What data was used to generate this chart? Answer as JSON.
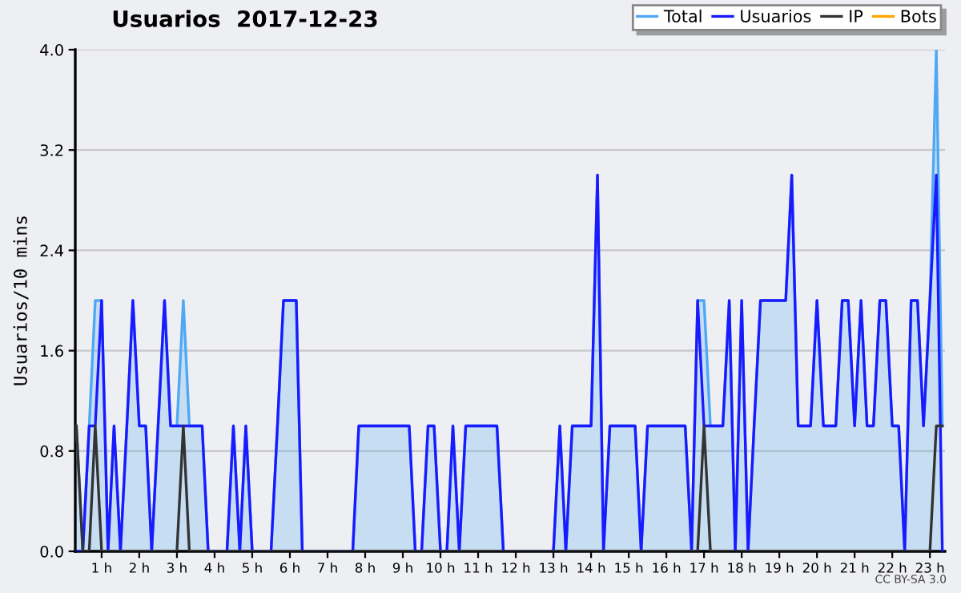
{
  "chart_data": {
    "type": "line",
    "title": "Usuarios  2017-12-23",
    "ylabel": "Usuarios/10 mins",
    "annotations": [
      "CC BY-SA 3.0"
    ],
    "x": [
      0.33,
      0.5,
      0.67,
      0.83,
      1,
      1.17,
      1.33,
      1.5,
      1.67,
      1.83,
      2,
      2.17,
      2.33,
      2.5,
      2.67,
      2.83,
      3,
      3.17,
      3.33,
      3.5,
      3.67,
      3.83,
      4,
      4.17,
      4.33,
      4.5,
      4.67,
      4.83,
      5,
      5.17,
      5.33,
      5.5,
      5.67,
      5.83,
      6,
      6.17,
      6.33,
      6.5,
      6.67,
      6.83,
      7,
      7.17,
      7.33,
      7.5,
      7.67,
      7.83,
      8,
      8.17,
      8.33,
      8.5,
      8.67,
      8.83,
      9,
      9.17,
      9.33,
      9.5,
      9.67,
      9.83,
      10,
      10.17,
      10.33,
      10.5,
      10.67,
      10.83,
      11,
      11.17,
      11.33,
      11.5,
      11.67,
      11.83,
      12,
      12.17,
      12.33,
      12.5,
      12.67,
      12.83,
      13,
      13.17,
      13.33,
      13.5,
      13.67,
      13.83,
      14,
      14.17,
      14.33,
      14.5,
      14.67,
      14.83,
      15,
      15.17,
      15.33,
      15.5,
      15.67,
      15.83,
      16,
      16.17,
      16.33,
      16.5,
      16.67,
      16.83,
      17,
      17.17,
      17.33,
      17.5,
      17.67,
      17.83,
      18,
      18.17,
      18.33,
      18.5,
      18.67,
      18.83,
      19,
      19.17,
      19.33,
      19.5,
      19.67,
      19.83,
      20,
      20.17,
      20.33,
      20.5,
      20.67,
      20.83,
      21,
      21.17,
      21.33,
      21.5,
      21.67,
      21.83,
      22,
      22.17,
      22.33,
      22.5,
      22.67,
      22.83,
      23,
      23.17,
      23.33
    ],
    "series": [
      {
        "name": "Total",
        "type": "area",
        "color": "#4ea8f5",
        "values": [
          1,
          0,
          1,
          2,
          2,
          0,
          1,
          0,
          1,
          2,
          1,
          1,
          0,
          1,
          2,
          1,
          1,
          2,
          1,
          1,
          1,
          0,
          0,
          0,
          0,
          1,
          0,
          1,
          0,
          0,
          0,
          0,
          1,
          2,
          2,
          2,
          0,
          0,
          0,
          0,
          0,
          0,
          0,
          0,
          0,
          1,
          1,
          1,
          1,
          1,
          1,
          1,
          1,
          1,
          0,
          0,
          1,
          1,
          0,
          0,
          1,
          0,
          1,
          1,
          1,
          1,
          1,
          1,
          0,
          0,
          0,
          0,
          0,
          0,
          0,
          0,
          0,
          1,
          0,
          1,
          1,
          1,
          1,
          3,
          0,
          1,
          1,
          1,
          1,
          1,
          0,
          1,
          1,
          1,
          1,
          1,
          1,
          1,
          0,
          2,
          2,
          1,
          1,
          1,
          2,
          0,
          2,
          0,
          1,
          2,
          2,
          2,
          2,
          2,
          3,
          1,
          1,
          1,
          2,
          1,
          1,
          1,
          2,
          2,
          1,
          2,
          1,
          1,
          2,
          2,
          1,
          1,
          0,
          2,
          2,
          1,
          2,
          4,
          1
        ]
      },
      {
        "name": "Usuarios",
        "color": "#1a1aff",
        "values": [
          0,
          0,
          1,
          1,
          2,
          0,
          1,
          0,
          1,
          2,
          1,
          1,
          0,
          1,
          2,
          1,
          1,
          1,
          1,
          1,
          1,
          0,
          0,
          0,
          0,
          1,
          0,
          1,
          0,
          0,
          0,
          0,
          1,
          2,
          2,
          2,
          0,
          0,
          0,
          0,
          0,
          0,
          0,
          0,
          0,
          1,
          1,
          1,
          1,
          1,
          1,
          1,
          1,
          1,
          0,
          0,
          1,
          1,
          0,
          0,
          1,
          0,
          1,
          1,
          1,
          1,
          1,
          1,
          0,
          0,
          0,
          0,
          0,
          0,
          0,
          0,
          0,
          1,
          0,
          1,
          1,
          1,
          1,
          3,
          0,
          1,
          1,
          1,
          1,
          1,
          0,
          1,
          1,
          1,
          1,
          1,
          1,
          1,
          0,
          2,
          1,
          1,
          1,
          1,
          2,
          0,
          2,
          0,
          1,
          2,
          2,
          2,
          2,
          2,
          3,
          1,
          1,
          1,
          2,
          1,
          1,
          1,
          2,
          2,
          1,
          2,
          1,
          1,
          2,
          2,
          1,
          1,
          0,
          2,
          2,
          1,
          2,
          3,
          0
        ]
      },
      {
        "name": "IP",
        "color": "#333333",
        "values": [
          1,
          0,
          0,
          1,
          0,
          0,
          0,
          0,
          0,
          0,
          0,
          0,
          0,
          0,
          0,
          0,
          0,
          1,
          0,
          0,
          0,
          0,
          0,
          0,
          0,
          0,
          0,
          0,
          0,
          0,
          0,
          0,
          0,
          0,
          0,
          0,
          0,
          0,
          0,
          0,
          0,
          0,
          0,
          0,
          0,
          0,
          0,
          0,
          0,
          0,
          0,
          0,
          0,
          0,
          0,
          0,
          0,
          0,
          0,
          0,
          0,
          0,
          0,
          0,
          0,
          0,
          0,
          0,
          0,
          0,
          0,
          0,
          0,
          0,
          0,
          0,
          0,
          0,
          0,
          0,
          0,
          0,
          0,
          0,
          0,
          0,
          0,
          0,
          0,
          0,
          0,
          0,
          0,
          0,
          0,
          0,
          0,
          0,
          0,
          0,
          1,
          0,
          0,
          0,
          0,
          0,
          0,
          0,
          0,
          0,
          0,
          0,
          0,
          0,
          0,
          0,
          0,
          0,
          0,
          0,
          0,
          0,
          0,
          0,
          0,
          0,
          0,
          0,
          0,
          0,
          0,
          0,
          0,
          0,
          0,
          0,
          0,
          1,
          1
        ]
      },
      {
        "name": "Bots",
        "color": "#ffa500",
        "values": [
          null,
          null,
          null,
          null,
          null,
          null,
          null,
          null,
          null,
          null,
          null,
          null,
          null,
          null,
          null,
          null,
          null,
          null,
          null,
          null,
          null,
          null,
          null,
          null,
          null,
          null,
          null,
          null,
          null,
          null,
          null,
          null,
          null,
          null,
          null,
          null,
          null,
          null,
          null,
          null,
          null,
          null,
          null,
          null,
          null,
          null,
          null,
          null,
          null,
          null,
          null,
          null,
          null,
          null,
          null,
          null,
          null,
          null,
          null,
          null,
          null,
          null,
          null,
          null,
          null,
          null,
          null,
          null,
          null,
          null,
          null,
          null,
          null,
          null,
          null,
          null,
          null,
          null,
          null,
          null,
          null,
          null,
          null,
          null,
          null,
          null,
          null,
          null,
          null,
          null,
          null,
          null,
          null,
          null,
          null,
          null,
          null,
          null,
          null,
          null,
          null,
          null,
          null,
          null,
          null,
          null,
          null,
          null,
          null,
          null,
          null,
          null,
          null,
          null,
          null,
          null,
          null,
          null,
          null,
          null,
          null,
          null,
          null,
          null,
          null,
          null,
          null,
          null,
          null,
          null,
          null,
          null,
          null,
          null,
          null,
          null,
          null,
          null,
          null
        ]
      }
    ],
    "xlim": [
      0.3,
      23.4
    ],
    "xticks": [
      {
        "value": 1,
        "label": "1 h"
      },
      {
        "value": 2,
        "label": "2 h"
      },
      {
        "value": 3,
        "label": "3 h"
      },
      {
        "value": 4,
        "label": "4 h"
      },
      {
        "value": 5,
        "label": "5 h"
      },
      {
        "value": 6,
        "label": "6 h"
      },
      {
        "value": 7,
        "label": "7 h"
      },
      {
        "value": 8,
        "label": "8 h"
      },
      {
        "value": 9,
        "label": "9 h"
      },
      {
        "value": 10,
        "label": "10 h"
      },
      {
        "value": 11,
        "label": "11 h"
      },
      {
        "value": 12,
        "label": "12 h"
      },
      {
        "value": 13,
        "label": "13 h"
      },
      {
        "value": 14,
        "label": "14 h"
      },
      {
        "value": 15,
        "label": "15 h"
      },
      {
        "value": 16,
        "label": "16 h"
      },
      {
        "value": 17,
        "label": "17 h"
      },
      {
        "value": 18,
        "label": "18 h"
      },
      {
        "value": 19,
        "label": "19 h"
      },
      {
        "value": 20,
        "label": "20 h"
      },
      {
        "value": 21,
        "label": "21 h"
      },
      {
        "value": 22,
        "label": "22 h"
      },
      {
        "value": 23,
        "label": "23 h"
      }
    ],
    "ylim": [
      0,
      4
    ],
    "yticks": [
      {
        "value": 0,
        "label": "0.0"
      },
      {
        "value": 0.8,
        "label": "0.8"
      },
      {
        "value": 1.6,
        "label": "1.6"
      },
      {
        "value": 2.4,
        "label": "2.4"
      },
      {
        "value": 3.2,
        "label": "3.2"
      },
      {
        "value": 4,
        "label": "4.0"
      }
    ],
    "grid": "y",
    "legend": "top right",
    "line_style": "solid",
    "marker": "none"
  }
}
